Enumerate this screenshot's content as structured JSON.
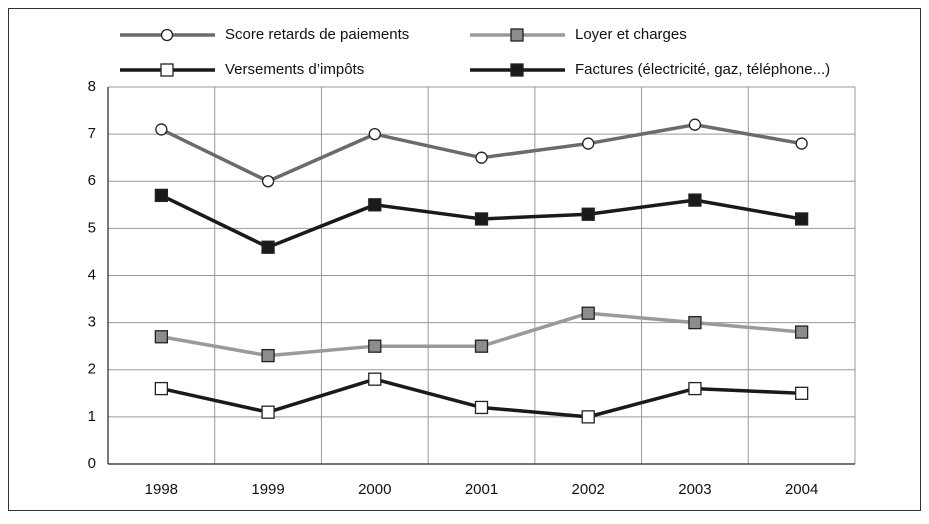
{
  "chart_data": {
    "type": "line",
    "categories": [
      "1998",
      "1999",
      "2000",
      "2001",
      "2002",
      "2003",
      "2004"
    ],
    "ylim": [
      0,
      8
    ],
    "yticks": [
      0,
      1,
      2,
      3,
      4,
      5,
      6,
      7,
      8
    ],
    "grid": true,
    "series": [
      {
        "name": "Score retards de paiements",
        "color": "#6b6b6b",
        "marker": "circle",
        "marker_color": "#ffffff",
        "values": [
          7.1,
          6.0,
          7.0,
          6.5,
          6.8,
          7.2,
          6.8
        ]
      },
      {
        "name": "Loyer et charges",
        "color": "#9a9a9a",
        "marker": "square",
        "marker_color": "#8c8c8c",
        "values": [
          2.7,
          2.3,
          2.5,
          2.5,
          3.2,
          3.0,
          2.8
        ]
      },
      {
        "name": "Versements d’impôts",
        "color": "#1a1a1a",
        "marker": "square",
        "marker_color": "#ffffff",
        "values": [
          1.6,
          1.1,
          1.8,
          1.2,
          1.0,
          1.6,
          1.5
        ]
      },
      {
        "name": "Factures (électricité, gaz, téléphone...)",
        "color": "#1a1a1a",
        "marker": "square",
        "marker_color": "#1a1a1a",
        "values": [
          5.7,
          4.6,
          5.5,
          5.2,
          5.3,
          5.6,
          5.2
        ]
      }
    ]
  }
}
